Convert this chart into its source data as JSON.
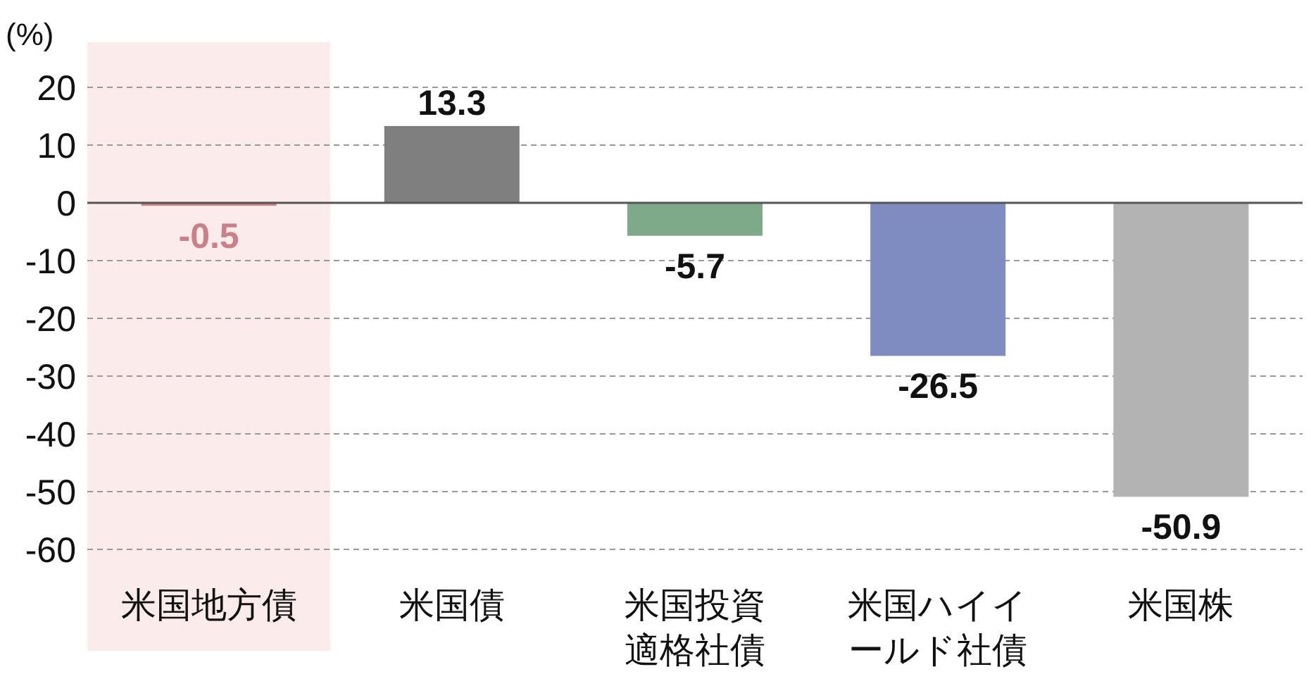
{
  "chart_data": {
    "type": "bar",
    "ylabel": "(%)",
    "categories": [
      "米国地方債",
      "米国債",
      "米国投資適格社債",
      "米国ハイイールド社債",
      "米国株"
    ],
    "values": [
      -0.5,
      13.3,
      -5.7,
      -26.5,
      -50.9
    ],
    "colors": [
      "#c98088",
      "#7f7f7f",
      "#7faa8a",
      "#7f8cc2",
      "#b3b3b3"
    ],
    "ylim": [
      -60,
      20
    ],
    "yticks": [
      20,
      10,
      0,
      -10,
      -20,
      -30,
      -40,
      -50,
      -60
    ],
    "grid": "y",
    "data_labels": true,
    "ref_lines": [
      {
        "axis": "y",
        "value": 0,
        "color": "#555555",
        "line_style": "solid"
      }
    ],
    "bands": [
      {
        "axis": "x",
        "from": "米国地方債",
        "to": "米国地方債",
        "color": "#fbebeb"
      }
    ]
  }
}
